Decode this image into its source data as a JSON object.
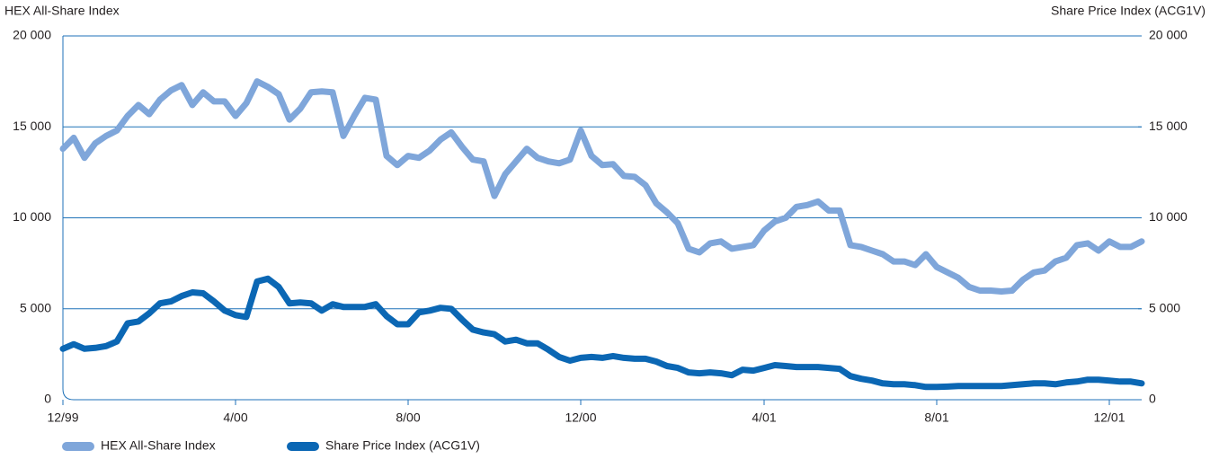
{
  "chart_data": {
    "type": "line",
    "yaxis_title": "HEX All-Share Index",
    "y2axis_title": "Share Price Index (ACG1V)",
    "categories": [
      "12/99",
      null,
      null,
      null,
      null,
      null,
      null,
      null,
      null,
      null,
      null,
      null,
      null,
      null,
      null,
      null,
      "4/00",
      null,
      null,
      null,
      null,
      null,
      null,
      null,
      null,
      null,
      null,
      null,
      null,
      null,
      null,
      null,
      "8/00",
      null,
      null,
      null,
      null,
      null,
      null,
      null,
      null,
      null,
      null,
      null,
      null,
      null,
      null,
      null,
      "12/00",
      null,
      null,
      null,
      null,
      null,
      null,
      null,
      null,
      null,
      null,
      null,
      null,
      null,
      null,
      null,
      null,
      "4/01",
      null,
      null,
      null,
      null,
      null,
      null,
      null,
      null,
      null,
      null,
      null,
      null,
      null,
      null,
      null,
      "8/01",
      null,
      null,
      null,
      null,
      null,
      null,
      null,
      null,
      null,
      null,
      null,
      null,
      null,
      null,
      null,
      "12/01",
      null,
      null,
      null
    ],
    "series": [
      {
        "name": "HEX All-Share Index",
        "color": "#7fa6da",
        "values": [
          13800,
          14400,
          13300,
          14100,
          14500,
          14800,
          15600,
          16200,
          15700,
          16500,
          17000,
          17300,
          16200,
          16900,
          16400,
          16400,
          15600,
          16300,
          17500,
          17200,
          16800,
          15400,
          16000,
          16900,
          16950,
          16900,
          14500,
          15600,
          16600,
          16500,
          13400,
          12900,
          13400,
          13300,
          13700,
          14300,
          14700,
          13900,
          13200,
          13100,
          11200,
          12400,
          13100,
          13800,
          13300,
          13100,
          13000,
          13200,
          14800,
          13400,
          12900,
          12950,
          12300,
          12250,
          11800,
          10800,
          10300,
          9700,
          8300,
          8100,
          8600,
          8700,
          8300,
          8400,
          8500,
          9300,
          9800,
          10000,
          10600,
          10700,
          10900,
          10400,
          10400,
          8500,
          8400,
          8200,
          8000,
          7600,
          7600,
          7400,
          8000,
          7300,
          7000,
          6700,
          6200,
          6000,
          6000,
          5950,
          6000,
          6600,
          7000,
          7100,
          7600,
          7800,
          8500,
          8600,
          8200,
          8700,
          8400,
          8400,
          8700
        ]
      },
      {
        "name": "Share Price Index (ACG1V)",
        "color": "#0b67b4",
        "axis": "y2",
        "values": [
          2800,
          3050,
          2800,
          2850,
          2950,
          3200,
          4200,
          4300,
          4750,
          5300,
          5400,
          5700,
          5900,
          5850,
          5400,
          4900,
          4650,
          4550,
          6500,
          6650,
          6200,
          5300,
          5350,
          5300,
          4900,
          5250,
          5100,
          5100,
          5100,
          5250,
          4600,
          4150,
          4150,
          4800,
          4900,
          5050,
          5000,
          4400,
          3850,
          3700,
          3600,
          3200,
          3300,
          3100,
          3100,
          2750,
          2350,
          2150,
          2300,
          2350,
          2300,
          2400,
          2300,
          2250,
          2250,
          2100,
          1850,
          1750,
          1500,
          1450,
          1500,
          1450,
          1350,
          1650,
          1600,
          1750,
          1900,
          1850,
          1800,
          1800,
          1800,
          1750,
          1700,
          1300,
          1150,
          1050,
          900,
          850,
          850,
          800,
          700,
          700,
          720,
          750,
          750,
          750,
          750,
          750,
          800,
          850,
          900,
          900,
          850,
          950,
          1000,
          1100,
          1100,
          1050,
          1000,
          1000,
          900
        ]
      }
    ],
    "ylim": [
      0,
      20000
    ],
    "yticks": [
      0,
      {
        "value": 5000,
        "label": "5 000"
      },
      {
        "value": 10000,
        "label": "10 000"
      },
      {
        "value": 15000,
        "label": "15 000"
      },
      {
        "value": 20000,
        "label": "20 000"
      }
    ],
    "y2lim": [
      0,
      20000
    ],
    "y2ticks": [
      0,
      {
        "value": 5000,
        "label": "5 000"
      },
      {
        "value": 10000,
        "label": "10 000"
      },
      {
        "value": 15000,
        "label": "15 000"
      },
      {
        "value": 20000,
        "label": "20 000"
      }
    ],
    "grid": true,
    "legend": "bottom-left"
  }
}
